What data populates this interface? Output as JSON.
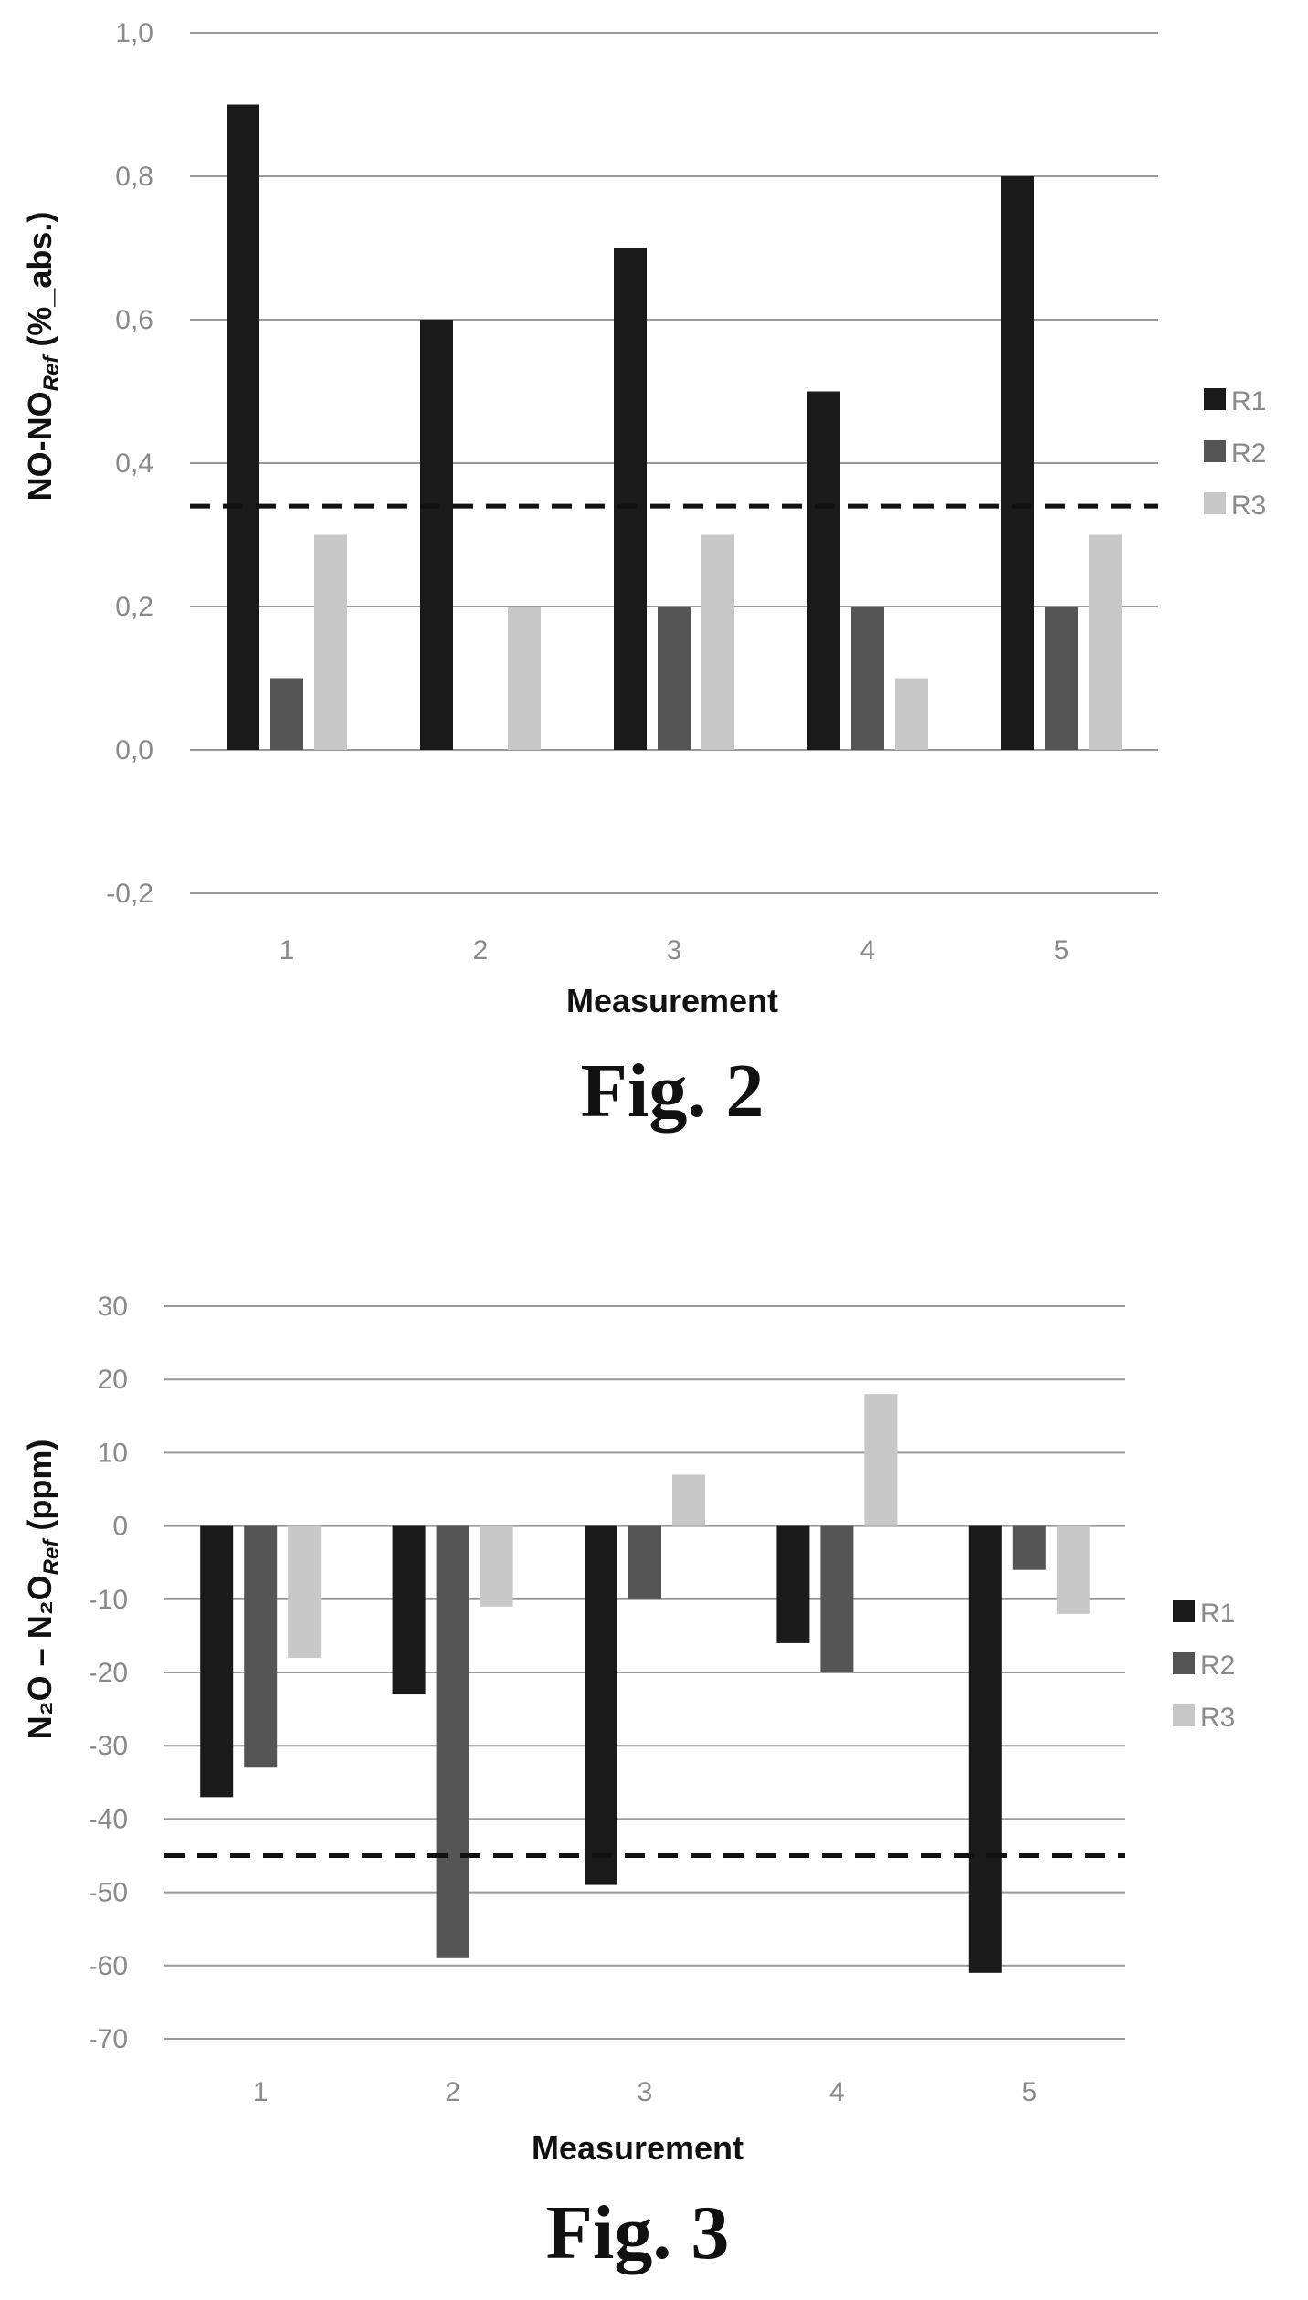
{
  "chart_data": [
    {
      "type": "bar",
      "caption": "Fig. 2",
      "xlabel": "Measurement",
      "ylabel": "NO-NO",
      "ylabel_sub": "Ref",
      "ylabel_suffix": " (%_abs.)",
      "categories": [
        "1",
        "2",
        "3",
        "4",
        "5"
      ],
      "ylim": [
        -0.2,
        1.0
      ],
      "yticks": [
        1.0,
        0.8,
        0.6,
        0.4,
        0.2,
        0.0,
        -0.2
      ],
      "ytick_labels": [
        "1,0",
        "0,8",
        "0,6",
        "0,4",
        "0,2",
        "0,0",
        "-0,2"
      ],
      "threshold": 0.34,
      "legend_position": "right",
      "grid": true,
      "series": [
        {
          "name": "R1",
          "color": "#1a1a1a",
          "values": [
            0.9,
            0.6,
            0.7,
            0.5,
            0.8
          ]
        },
        {
          "name": "R2",
          "color": "#555555",
          "values": [
            0.1,
            0.0,
            0.2,
            0.2,
            0.2
          ]
        },
        {
          "name": "R3",
          "color": "#c8c8c8",
          "values": [
            0.3,
            0.2,
            0.3,
            0.1,
            0.3
          ]
        }
      ]
    },
    {
      "type": "bar",
      "caption": "Fig. 3",
      "xlabel": "Measurement",
      "ylabel": "N₂O – N₂O",
      "ylabel_sub": "Ref",
      "ylabel_suffix": " (ppm)",
      "categories": [
        "1",
        "2",
        "3",
        "4",
        "5"
      ],
      "ylim": [
        -70,
        30
      ],
      "yticks": [
        30,
        20,
        10,
        0,
        -10,
        -20,
        -30,
        -40,
        -50,
        -60,
        -70
      ],
      "ytick_labels": [
        "30",
        "20",
        "10",
        "0",
        "-10",
        "-20",
        "-30",
        "-40",
        "-50",
        "-60",
        "-70"
      ],
      "threshold": -45,
      "legend_position": "right",
      "grid": true,
      "series": [
        {
          "name": "R1",
          "color": "#1a1a1a",
          "values": [
            -37,
            -23,
            -49,
            -16,
            -61
          ]
        },
        {
          "name": "R2",
          "color": "#555555",
          "values": [
            -33,
            -59,
            -10,
            -20,
            -6
          ]
        },
        {
          "name": "R3",
          "color": "#c8c8c8",
          "values": [
            -18,
            -11,
            7,
            18,
            -12
          ]
        }
      ]
    }
  ]
}
